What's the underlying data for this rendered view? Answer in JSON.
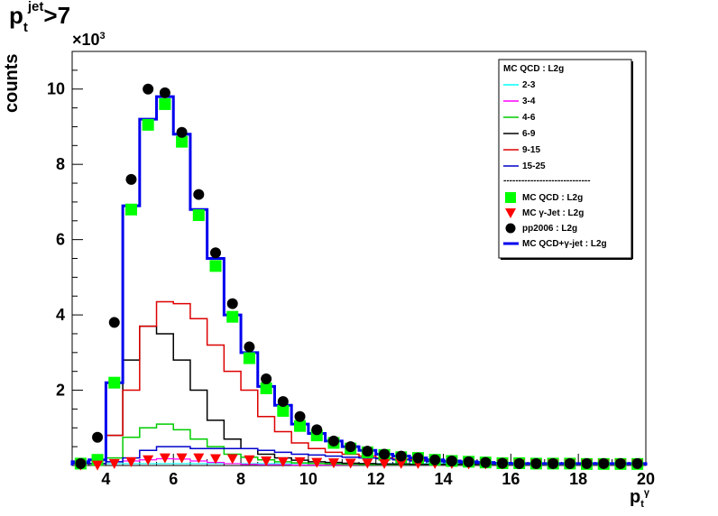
{
  "title": {
    "base": "p",
    "sup": "jet",
    "sub": "t",
    "suffix": ">7"
  },
  "axes": {
    "ylabel": "counts",
    "xlabel": {
      "base": "p",
      "sub": "t",
      "sup": "γ"
    },
    "y_exponent": {
      "prefix": "×10",
      "power": "3"
    }
  },
  "chart_data": {
    "type": "line",
    "xlim": [
      3,
      20
    ],
    "ylim": [
      0,
      11
    ],
    "x_ticks": [
      "4",
      "6",
      "8",
      "10",
      "12",
      "14",
      "16",
      "18",
      "20"
    ],
    "y_ticks": [
      "2",
      "4",
      "6",
      "8",
      "10"
    ],
    "bin_edges": [
      3,
      3.5,
      4,
      4.5,
      5,
      5.5,
      6,
      6.5,
      7,
      7.5,
      8,
      8.5,
      9,
      9.5,
      10,
      10.5,
      11,
      11.5,
      12,
      12.5,
      13,
      13.5,
      14,
      14.5,
      15,
      15.5,
      16,
      16.5,
      17,
      17.5,
      18,
      18.5,
      19,
      19.5,
      20
    ],
    "bin_centers": [
      3.25,
      3.75,
      4.25,
      4.75,
      5.25,
      5.75,
      6.25,
      6.75,
      7.25,
      7.75,
      8.25,
      8.75,
      9.25,
      9.75,
      10.25,
      10.75,
      11.25,
      11.75,
      12.25,
      12.75,
      13.25,
      13.75,
      14.25,
      14.75,
      15.25,
      15.75,
      16.25,
      16.75,
      17.25,
      17.75,
      18.25,
      18.75,
      19.25,
      19.75
    ],
    "legend": {
      "header": "MC QCD : L2g",
      "separator": "-----------------------------",
      "entries": [
        {
          "label": "2-3",
          "color": "#00ffff"
        },
        {
          "label": "3-4",
          "color": "#ff00ff"
        },
        {
          "label": "4-6",
          "color": "#00cc00"
        },
        {
          "label": "6-9",
          "color": "#000000"
        },
        {
          "label": "9-15",
          "color": "#dd0000"
        },
        {
          "label": "15-25",
          "color": "#0000cc"
        }
      ],
      "markers": [
        {
          "label": "MC QCD : L2g",
          "marker": "square",
          "color": "#00ff00"
        },
        {
          "label": "MC γ-Jet : L2g",
          "marker": "triangle",
          "color": "#ff0000"
        },
        {
          "label": "pp2006 : L2g",
          "marker": "circle",
          "color": "#000000"
        },
        {
          "label": "MC QCD+γ-jet : L2g",
          "marker": "line",
          "color": "#0000ee"
        }
      ]
    },
    "series": [
      {
        "name": "2-3",
        "color": "#00ffff",
        "width": 1.2,
        "values": [
          0.05,
          0.05,
          0.05,
          0.05,
          0.05,
          0.05,
          0.05,
          0.05,
          0.05,
          0.05,
          0.05,
          0.05,
          0.05,
          0.05,
          0.05,
          0.05,
          0.05,
          0.05,
          0.05,
          0.05,
          0.05,
          0.05,
          0.05,
          0.05,
          0.05,
          0.05,
          0.05,
          0.05,
          0.05,
          0.05,
          0.05,
          0.05,
          0.05,
          0.05
        ]
      },
      {
        "name": "3-4",
        "color": "#ff00ff",
        "width": 1.2,
        "values": [
          0.05,
          0.05,
          0.1,
          0.12,
          0.15,
          0.18,
          0.17,
          0.12,
          0.08,
          0.05,
          0.03,
          0.02,
          0.02,
          0.01,
          0.01,
          0.01,
          0.01,
          0.01,
          0.01,
          0.01,
          0.01,
          0.01,
          0.01,
          0.01,
          0.01,
          0.01,
          0.01,
          0.01,
          0.01,
          0.01,
          0.01,
          0.01,
          0.01,
          0.01
        ]
      },
      {
        "name": "4-6",
        "color": "#00cc00",
        "width": 1.5,
        "values": [
          0.05,
          0.05,
          0.2,
          0.75,
          1.0,
          1.1,
          0.95,
          0.7,
          0.5,
          0.3,
          0.22,
          0.15,
          0.1,
          0.07,
          0.05,
          0.04,
          0.03,
          0.02,
          0.02,
          0.02,
          0.02,
          0.02,
          0.02,
          0.02,
          0.02,
          0.02,
          0.02,
          0.02,
          0.02,
          0.02,
          0.02,
          0.02,
          0.02,
          0.02
        ]
      },
      {
        "name": "6-9",
        "color": "#000000",
        "width": 1.5,
        "values": [
          0.05,
          0.05,
          0.8,
          2.8,
          3.7,
          3.5,
          2.8,
          2.0,
          1.2,
          0.7,
          0.45,
          0.3,
          0.2,
          0.14,
          0.1,
          0.08,
          0.06,
          0.05,
          0.04,
          0.04,
          0.03,
          0.03,
          0.03,
          0.03,
          0.03,
          0.03,
          0.03,
          0.03,
          0.03,
          0.03,
          0.03,
          0.03,
          0.03,
          0.03
        ]
      },
      {
        "name": "9-15",
        "color": "#dd0000",
        "width": 1.5,
        "values": [
          0.05,
          0.05,
          0.8,
          2.0,
          3.7,
          4.35,
          4.3,
          3.9,
          3.2,
          2.5,
          2.0,
          1.3,
          0.9,
          0.6,
          0.45,
          0.35,
          0.3,
          0.25,
          0.2,
          0.17,
          0.15,
          0.12,
          0.1,
          0.08,
          0.07,
          0.06,
          0.05,
          0.05,
          0.05,
          0.05,
          0.05,
          0.05,
          0.05,
          0.05
        ]
      },
      {
        "name": "15-25",
        "color": "#0000cc",
        "width": 1.5,
        "values": [
          0.05,
          0.05,
          0.1,
          0.2,
          0.4,
          0.5,
          0.5,
          0.45,
          0.45,
          0.45,
          0.45,
          0.4,
          0.35,
          0.3,
          0.28,
          0.25,
          0.22,
          0.2,
          0.18,
          0.15,
          0.12,
          0.1,
          0.08,
          0.06,
          0.05,
          0.05,
          0.05,
          0.05,
          0.05,
          0.05,
          0.05,
          0.05,
          0.05,
          0.05
        ]
      },
      {
        "name": "MC QCD+γ-jet : L2g",
        "color": "#0000ee",
        "width": 3,
        "values": [
          0.1,
          0.15,
          2.2,
          6.9,
          9.2,
          9.8,
          8.8,
          6.8,
          5.5,
          4.0,
          3.0,
          2.1,
          1.6,
          1.1,
          0.85,
          0.65,
          0.5,
          0.4,
          0.3,
          0.25,
          0.2,
          0.15,
          0.12,
          0.1,
          0.08,
          0.06,
          0.05,
          0.05,
          0.05,
          0.05,
          0.05,
          0.05,
          0.05,
          0.05
        ]
      }
    ],
    "markers": {
      "mc_qcd": {
        "name": "MC QCD : L2g",
        "color": "#00ff00",
        "values": [
          0.05,
          0.15,
          2.2,
          6.8,
          9.05,
          9.6,
          8.6,
          6.65,
          5.3,
          3.95,
          2.85,
          2.05,
          1.45,
          1.05,
          0.8,
          0.6,
          0.45,
          0.35,
          0.28,
          0.22,
          0.2,
          0.15,
          0.12,
          0.1,
          0.08,
          0.06,
          0.06,
          0.05,
          0.05,
          0.05,
          0.04,
          0.04,
          0.04,
          0.04
        ]
      },
      "mc_gamma": {
        "name": "MC γ-Jet : L2g",
        "color": "#ff0000",
        "values": [
          0.01,
          0.01,
          0.05,
          0.1,
          0.15,
          0.2,
          0.2,
          0.2,
          0.18,
          0.18,
          0.15,
          0.12,
          0.1,
          0.1,
          0.08,
          0.07,
          0.06,
          0.06,
          0.05,
          0.05,
          0.05,
          0.05,
          0.05,
          0.04,
          0.04,
          0.04,
          0.04,
          0.04,
          0.04,
          0.04,
          0.04,
          0.04,
          0.04,
          0.04
        ]
      },
      "pp2006": {
        "name": "pp2006 : L2g",
        "color": "#000000",
        "values": [
          0.05,
          0.75,
          3.8,
          7.6,
          10.0,
          9.9,
          8.85,
          7.2,
          5.65,
          4.3,
          3.15,
          2.3,
          1.7,
          1.3,
          0.95,
          0.65,
          0.5,
          0.38,
          0.3,
          0.25,
          0.2,
          0.15,
          0.12,
          0.1,
          0.08,
          0.06,
          0.05,
          0.05,
          0.05,
          0.05,
          0.05,
          0.05,
          0.05,
          0.05
        ]
      }
    }
  }
}
